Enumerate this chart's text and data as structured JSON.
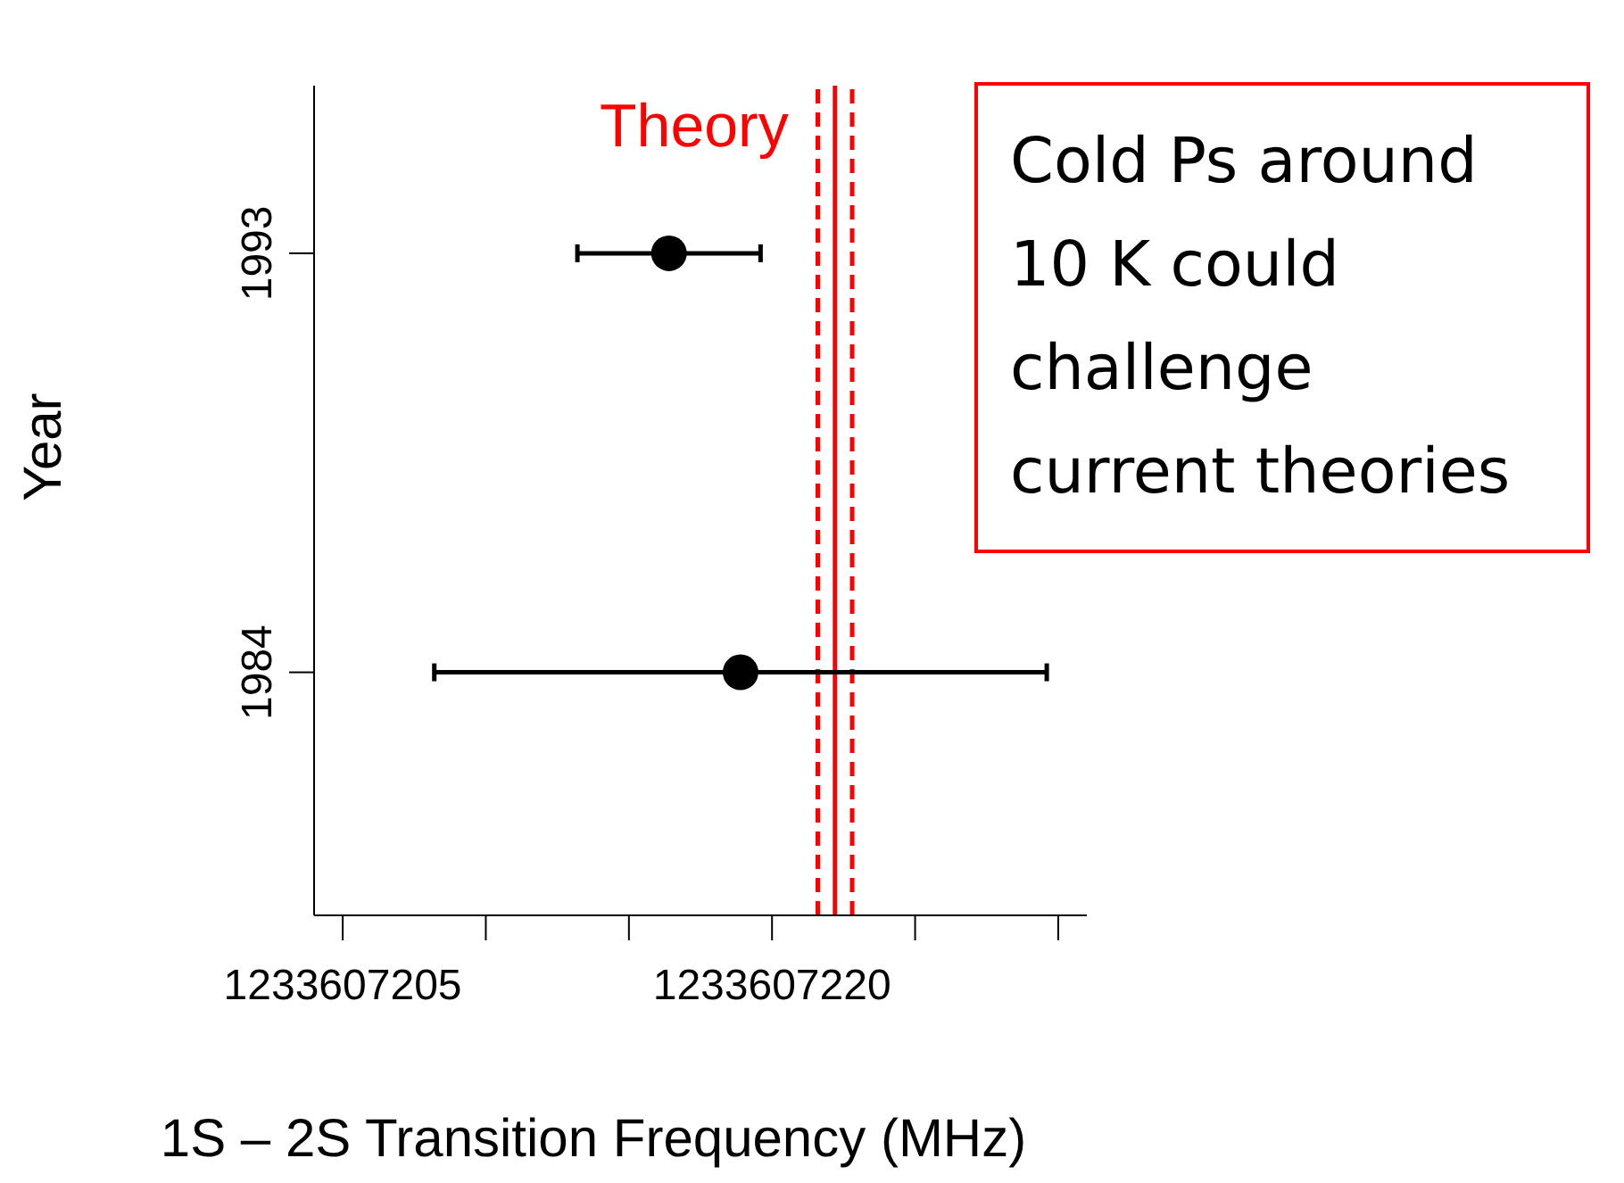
{
  "chart_data": {
    "type": "scatter",
    "orientation": "horizontal",
    "xlabel": "1S – 2S Transition Frequency (MHz)",
    "ylabel": "Year",
    "categories": [
      "1993",
      "1984"
    ],
    "series": [
      {
        "color": "#000000",
        "values": [
          1233607216.4,
          1233607218.9
        ],
        "errors": [
          3.2,
          10.7
        ]
      }
    ],
    "xlim": [
      1233607204,
      1233607231
    ],
    "xticks": [
      1233607205,
      {
        "value": 1233607210,
        "label": null
      },
      {
        "value": 1233607215,
        "label": null
      },
      1233607220,
      {
        "value": 1233607225,
        "label": null
      },
      {
        "value": 1233607230,
        "label": null
      }
    ],
    "ref_lines": [
      {
        "axis": "x",
        "value": 1233607222.2,
        "label": "Theory",
        "color": "#ff0000",
        "line_style": "solid"
      },
      {
        "axis": "x",
        "value": 1233607221.6,
        "color": "#ff0000",
        "line_style": "dashed"
      },
      {
        "axis": "x",
        "value": 1233607222.8,
        "color": "#ff0000",
        "line_style": "dashed"
      }
    ],
    "annotations": [
      "Cold Ps around 10 K could challenge current theories"
    ],
    "marker": "circle"
  }
}
